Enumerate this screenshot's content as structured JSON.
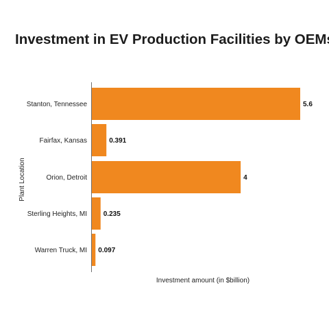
{
  "chart_data": {
    "type": "bar",
    "orientation": "horizontal",
    "title": "Investment in EV Production Facilities by OEMs",
    "xlabel": "Investment amount (in $billion)",
    "ylabel": "Plant Location",
    "categories": [
      "Stanton, Tennessee",
      "Fairfax, Kansas",
      "Orion, Detroit",
      "Sterling Heights, MI",
      "Warren Truck, MI"
    ],
    "values": [
      5.6,
      0.391,
      4,
      0.235,
      0.097
    ],
    "value_labels": [
      "5.6",
      "0.391",
      "4",
      "0.235",
      "0.097"
    ],
    "xlim": [
      0,
      5.6
    ],
    "grid": false,
    "bar_color": "#f0881f"
  }
}
